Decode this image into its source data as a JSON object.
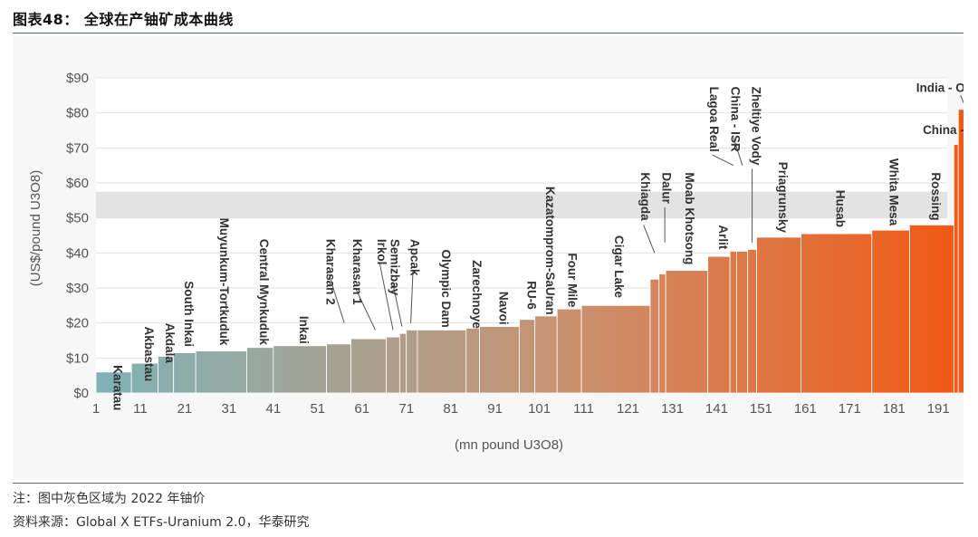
{
  "figure_title": "图表48：  全球在产铀矿成本曲线",
  "note": "注：图中灰色区域为 2022 年铀价",
  "source": "资料来源：Global X ETFs-Uranium 2.0，华泰研究",
  "chart_data": {
    "type": "bar",
    "subtype": "cost-curve",
    "ylabel": "(US$/pound U3O8)",
    "xlabel": "(mn pound U3O8)",
    "ylim": [
      0,
      90
    ],
    "xlim": [
      1,
      193
    ],
    "y_ticks": [
      "$0",
      "$10",
      "$20",
      "$30",
      "$40",
      "$50",
      "$60",
      "$70",
      "$80",
      "$90"
    ],
    "x_ticks": [
      "1",
      "11",
      "21",
      "31",
      "41",
      "51",
      "61",
      "71",
      "81",
      "91",
      "101",
      "111",
      "121",
      "131",
      "141",
      "151",
      "161",
      "171",
      "181",
      "191"
    ],
    "grid": true,
    "shaded_band": {
      "from": 50,
      "to": 57.5
    },
    "color_start": "#7fb2b7",
    "color_end": "#f15a16",
    "segments": [
      {
        "name": "Karatau",
        "x0": 1,
        "x1": 9,
        "value": 6
      },
      {
        "name": "Akbastau",
        "x0": 9,
        "x1": 15,
        "value": 8.5
      },
      {
        "name": "Akdala",
        "x0": 15,
        "x1": 18.5,
        "value": 10.5
      },
      {
        "name": "South Inkai",
        "x0": 18.5,
        "x1": 23.5,
        "value": 11.5
      },
      {
        "name": "Muyunkum-Tortkuduk",
        "x0": 23.5,
        "x1": 35,
        "value": 12
      },
      {
        "name": "Central Mynkuduk",
        "x0": 35,
        "x1": 41,
        "value": 13
      },
      {
        "name": "Inkai",
        "x0": 41,
        "x1": 53,
        "value": 13.5
      },
      {
        "name": "Kharasan 2",
        "x0": 53,
        "x1": 58.5,
        "value": 14
      },
      {
        "name": "Kharasan 1",
        "x0": 58.5,
        "x1": 66.5,
        "value": 15.5
      },
      {
        "name": "Irkol",
        "x0": 66.5,
        "x1": 69.5,
        "value": 16
      },
      {
        "name": "Semizbay",
        "x0": 69.5,
        "x1": 71,
        "value": 17
      },
      {
        "name": "Apcak",
        "x0": 71,
        "x1": 73.5,
        "value": 18
      },
      {
        "name": "Olympic Dam",
        "x0": 73.5,
        "x1": 84.5,
        "value": 18
      },
      {
        "name": "Zarechnoye",
        "x0": 84.5,
        "x1": 87.5,
        "value": 18.5
      },
      {
        "name": "Navoi",
        "x0": 87.5,
        "x1": 96.5,
        "value": 19
      },
      {
        "name": "RU-6",
        "x0": 96.5,
        "x1": 100,
        "value": 21
      },
      {
        "name": "Kazatomprom-SaUran",
        "x0": 100,
        "x1": 105,
        "value": 22
      },
      {
        "name": "Four Mile",
        "x0": 105,
        "x1": 110.5,
        "value": 24
      },
      {
        "name": "Cigar Lake",
        "x0": 110.5,
        "x1": 126,
        "value": 25
      },
      {
        "name": "Khiagda",
        "x0": 126,
        "x1": 128,
        "value": 32.5
      },
      {
        "name": "Dalur",
        "x0": 128,
        "x1": 129.5,
        "value": 34
      },
      {
        "name": "Moab Khotsong",
        "x0": 129.5,
        "x1": 139,
        "value": 35
      },
      {
        "name": "Arlit",
        "x0": 139,
        "x1": 144,
        "value": 39
      },
      {
        "name": "Lagoa Real",
        "x0": 144,
        "x1": 145.5,
        "value": 40.5
      },
      {
        "name": "China - ISR",
        "x0": 145.5,
        "x1": 148,
        "value": 40.5
      },
      {
        "name": "Zheltiye Vody",
        "x0": 148,
        "x1": 150,
        "value": 41
      },
      {
        "name": "Priagrunsky",
        "x0": 150,
        "x1": 160,
        "value": 44.5
      },
      {
        "name": "Husab",
        "x0": 160,
        "x1": 176,
        "value": 45.5
      },
      {
        "name": "Whita Mesa",
        "x0": 176,
        "x1": 184.5,
        "value": 46.5
      },
      {
        "name": "Rossing",
        "x0": 184.5,
        "x1": 194.5,
        "value": 48
      },
      {
        "name": "China - Conventional",
        "x0": 194.5,
        "x1": 195.5,
        "value": 71
      },
      {
        "name": "India - Operating",
        "x0": 195.5,
        "x1": 197.5,
        "value": 81
      }
    ],
    "labels": [
      {
        "text": "Karatau",
        "orient": "v",
        "x": 5,
        "y": 8
      },
      {
        "text": "Akbastau",
        "orient": "v",
        "x": 12,
        "y": 19
      },
      {
        "text": "Akdala",
        "orient": "v",
        "x": 16.7,
        "y": 20
      },
      {
        "text": "South Inkai",
        "orient": "v",
        "x": 21,
        "y": 32
      },
      {
        "text": "Muyunkum-Tortkuduk",
        "orient": "v",
        "x": 29,
        "y": 50
      },
      {
        "text": "Central Mynkuduk",
        "orient": "v",
        "x": 38,
        "y": 44
      },
      {
        "text": "Inkai",
        "orient": "v",
        "x": 47,
        "y": 22
      },
      {
        "text": "Kharasan 2",
        "orient": "v",
        "x": 53,
        "y": 44,
        "leader": [
          53.5,
          34,
          57,
          20
        ]
      },
      {
        "text": "Kharasan 1",
        "orient": "v",
        "x": 59,
        "y": 44,
        "leader": [
          59.5,
          30,
          64,
          18
        ]
      },
      {
        "text": "Irkol",
        "orient": "v",
        "x": 64.5,
        "y": 44,
        "leader": [
          65,
          37,
          68,
          18
        ]
      },
      {
        "text": "Semizbay",
        "orient": "v",
        "x": 67.5,
        "y": 44,
        "leader": [
          68,
          31,
          70,
          19
        ]
      },
      {
        "text": "Apcak",
        "orient": "v",
        "x": 72,
        "y": 44,
        "leader": [
          72.5,
          35,
          72,
          20
        ]
      },
      {
        "text": "Olympic Dam",
        "orient": "v",
        "x": 79,
        "y": 41
      },
      {
        "text": "Zarechnoye",
        "orient": "v",
        "x": 86,
        "y": 38
      },
      {
        "text": "Navoi",
        "orient": "v",
        "x": 92,
        "y": 29
      },
      {
        "text": "RU-6",
        "orient": "v",
        "x": 98.3,
        "y": 32
      },
      {
        "text": "Kazatomprom-SaUran",
        "orient": "v",
        "x": 102.5,
        "y": 59
      },
      {
        "text": "Four Mile",
        "orient": "v",
        "x": 107.5,
        "y": 40
      },
      {
        "text": "Cigar Lake",
        "orient": "v",
        "x": 118,
        "y": 45
      },
      {
        "text": "Khiagda",
        "orient": "v",
        "x": 124,
        "y": 63,
        "leader": [
          124.5,
          48,
          127,
          40
        ]
      },
      {
        "text": "Dalur",
        "orient": "v",
        "x": 128.8,
        "y": 63,
        "leader": [
          129.3,
          53,
          129.3,
          43
        ]
      },
      {
        "text": "Moab Khotsong",
        "orient": "v",
        "x": 134,
        "y": 63
      },
      {
        "text": "Arlit",
        "orient": "v",
        "x": 141.5,
        "y": 48
      },
      {
        "text": "Lagoa Real",
        "orient": "v",
        "x": 139.5,
        "y": 87.5,
        "leader": [
          140,
          68,
          144.8,
          65
        ]
      },
      {
        "text": "China - ISR",
        "orient": "v",
        "x": 144.3,
        "y": 87.5,
        "leader": [
          144.8,
          73,
          146.8,
          65
        ]
      },
      {
        "text": "Zheltiye Vody",
        "orient": "v",
        "x": 149,
        "y": 87.5,
        "leader": [
          149,
          64,
          149,
          43
        ]
      },
      {
        "text": "Priagrunsky",
        "orient": "v",
        "x": 155,
        "y": 66
      },
      {
        "text": "Husab",
        "orient": "v",
        "x": 168,
        "y": 58
      },
      {
        "text": "Whita Mesa",
        "orient": "v",
        "x": 180,
        "y": 67
      },
      {
        "text": "Rossing",
        "orient": "v",
        "x": 189.5,
        "y": 63
      },
      {
        "text": "China - Conventional",
        "orient": "h",
        "x": 187.5,
        "y": 74
      },
      {
        "text": "India - Operating",
        "orient": "h",
        "x": 186,
        "y": 86,
        "leader": [
          196,
          85,
          197,
          82
        ]
      }
    ]
  }
}
